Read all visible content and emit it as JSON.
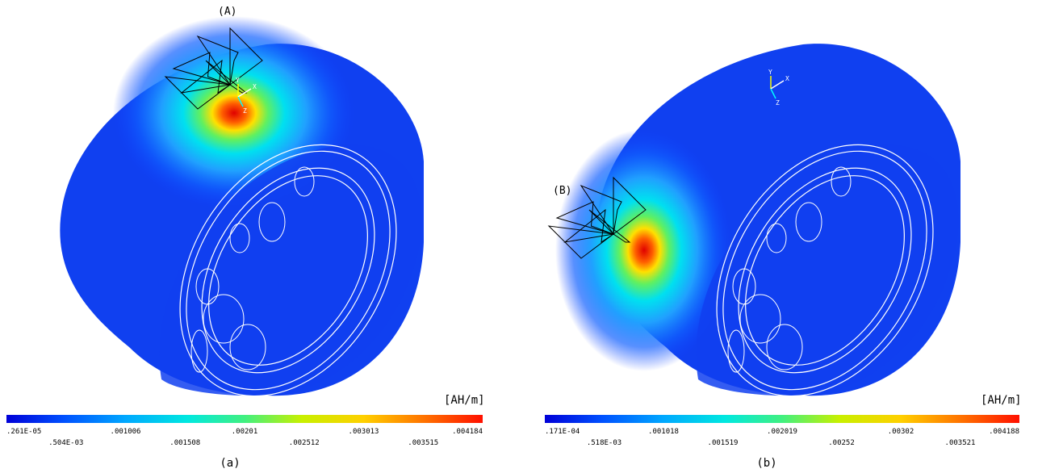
{
  "panels": [
    {
      "marker": "(A)",
      "unit": "[AH/m]",
      "triad": [
        "Y",
        "X",
        "Z"
      ],
      "colorbar": {
        "top": [
          ".261E-05",
          ".001006",
          ".00201",
          ".003013",
          ".004184"
        ],
        "bottom": [
          ".504E-03",
          ".001508",
          ".002512",
          ".003515"
        ]
      },
      "caption": "(a)"
    },
    {
      "marker": "(B)",
      "unit": "[AH/m]",
      "triad": [
        "Y",
        "X",
        "Z"
      ],
      "colorbar": {
        "top": [
          ".171E-04",
          ".001018",
          ".002019",
          ".00302",
          ".004188"
        ],
        "bottom": [
          ".518E-03",
          ".001519",
          ".00252",
          ".003521"
        ]
      },
      "caption": "(b)"
    }
  ]
}
